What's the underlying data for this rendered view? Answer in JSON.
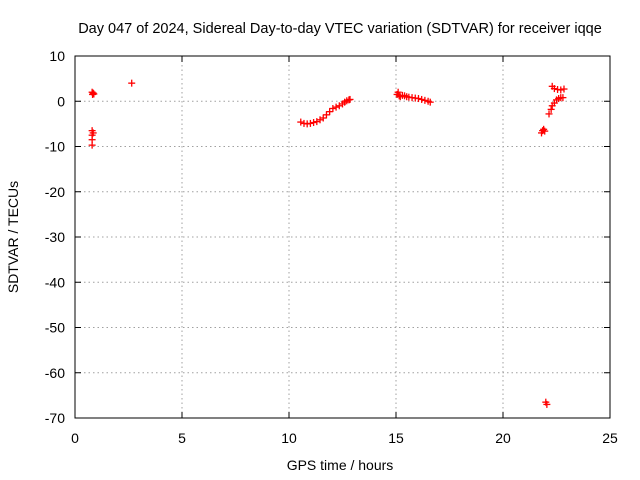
{
  "chart_data": {
    "type": "scatter",
    "title": "Day 047 of 2024, Sidereal Day-to-day VTEC variation (SDTVAR) for receiver iqqe",
    "xlabel": "GPS time / hours",
    "ylabel": "SDTVAR / TECUs",
    "xlim": [
      0,
      25
    ],
    "ylim": [
      -70,
      10
    ],
    "xticks": [
      0,
      5,
      10,
      15,
      20,
      25
    ],
    "yticks": [
      10,
      0,
      -10,
      -20,
      -30,
      -40,
      -50,
      -60,
      -70
    ],
    "grid": true,
    "marker": "+",
    "color": "#ff0000",
    "series": [
      {
        "name": "SDTVAR",
        "points": [
          [
            0.8,
            2.0
          ],
          [
            0.82,
            1.5
          ],
          [
            0.85,
            1.8
          ],
          [
            0.88,
            1.6
          ],
          [
            0.8,
            -6.5
          ],
          [
            0.8,
            -7.5
          ],
          [
            0.8,
            -8.5
          ],
          [
            0.8,
            -9.7
          ],
          [
            0.85,
            -7.0
          ],
          [
            2.65,
            4.0
          ],
          [
            10.55,
            -4.6
          ],
          [
            10.7,
            -4.9
          ],
          [
            10.85,
            -5.0
          ],
          [
            11.0,
            -4.9
          ],
          [
            11.15,
            -4.7
          ],
          [
            11.3,
            -4.5
          ],
          [
            11.45,
            -4.1
          ],
          [
            11.6,
            -3.7
          ],
          [
            11.75,
            -3.0
          ],
          [
            11.9,
            -2.3
          ],
          [
            12.05,
            -1.6
          ],
          [
            12.2,
            -1.3
          ],
          [
            12.35,
            -1.0
          ],
          [
            12.5,
            -0.6
          ],
          [
            12.6,
            -0.2
          ],
          [
            12.7,
            0.1
          ],
          [
            12.8,
            0.3
          ],
          [
            12.85,
            0.4
          ],
          [
            15.05,
            1.5
          ],
          [
            15.1,
            2.0
          ],
          [
            15.15,
            1.2
          ],
          [
            15.2,
            1.0
          ],
          [
            15.3,
            1.3
          ],
          [
            15.4,
            1.2
          ],
          [
            15.5,
            1.0
          ],
          [
            15.6,
            0.9
          ],
          [
            15.75,
            0.8
          ],
          [
            15.9,
            0.7
          ],
          [
            16.05,
            0.6
          ],
          [
            16.2,
            0.4
          ],
          [
            16.35,
            0.2
          ],
          [
            16.5,
            0.0
          ],
          [
            16.6,
            -0.2
          ],
          [
            21.8,
            -7.0
          ],
          [
            21.85,
            -6.5
          ],
          [
            21.9,
            -6.2
          ],
          [
            21.95,
            -6.6
          ],
          [
            22.0,
            -66.5
          ],
          [
            22.05,
            -67.0
          ],
          [
            22.15,
            -2.8
          ],
          [
            22.25,
            -1.8
          ],
          [
            22.3,
            -1.0
          ],
          [
            22.4,
            -0.4
          ],
          [
            22.5,
            0.3
          ],
          [
            22.6,
            0.6
          ],
          [
            22.7,
            0.8
          ],
          [
            22.8,
            0.8
          ],
          [
            22.3,
            3.3
          ],
          [
            22.4,
            2.8
          ],
          [
            22.55,
            2.6
          ],
          [
            22.7,
            2.5
          ],
          [
            22.85,
            2.7
          ]
        ]
      }
    ]
  }
}
